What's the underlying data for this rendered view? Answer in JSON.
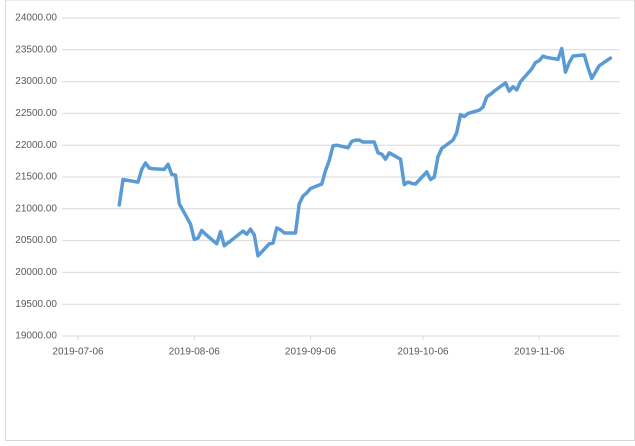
{
  "chart_data": {
    "type": "line",
    "x": [
      "2019-07-17",
      "2019-07-18",
      "2019-07-22",
      "2019-07-23",
      "2019-07-24",
      "2019-07-25",
      "2019-07-26",
      "2019-07-29",
      "2019-07-30",
      "2019-07-31",
      "2019-08-01",
      "2019-08-02",
      "2019-08-05",
      "2019-08-06",
      "2019-08-07",
      "2019-08-08",
      "2019-08-09",
      "2019-08-12",
      "2019-08-13",
      "2019-08-14",
      "2019-08-16",
      "2019-08-19",
      "2019-08-20",
      "2019-08-21",
      "2019-08-22",
      "2019-08-23",
      "2019-08-26",
      "2019-08-27",
      "2019-08-28",
      "2019-08-29",
      "2019-08-30",
      "2019-09-02",
      "2019-09-03",
      "2019-09-04",
      "2019-09-05",
      "2019-09-06",
      "2019-09-09",
      "2019-09-10",
      "2019-09-11",
      "2019-09-12",
      "2019-09-13",
      "2019-09-16",
      "2019-09-17",
      "2019-09-18",
      "2019-09-19",
      "2019-09-20",
      "2019-09-23",
      "2019-09-24",
      "2019-09-25",
      "2019-09-26",
      "2019-09-27",
      "2019-09-30",
      "2019-10-01",
      "2019-10-02",
      "2019-10-03",
      "2019-10-04",
      "2019-10-07",
      "2019-10-08",
      "2019-10-09",
      "2019-10-10",
      "2019-10-11",
      "2019-10-14",
      "2019-10-15",
      "2019-10-16",
      "2019-10-17",
      "2019-10-18",
      "2019-10-21",
      "2019-10-22",
      "2019-10-23",
      "2019-10-24",
      "2019-10-25",
      "2019-10-28",
      "2019-10-29",
      "2019-10-30",
      "2019-10-31",
      "2019-11-01",
      "2019-11-04",
      "2019-11-05",
      "2019-11-06",
      "2019-11-07",
      "2019-11-08",
      "2019-11-11",
      "2019-11-12",
      "2019-11-13",
      "2019-11-14",
      "2019-11-15",
      "2019-11-18",
      "2019-11-19",
      "2019-11-20",
      "2019-11-21",
      "2019-11-22",
      "2019-11-25"
    ],
    "values": [
      21060,
      21460,
      21420,
      21620,
      21720,
      21640,
      21630,
      21620,
      21700,
      21540,
      21530,
      21080,
      20760,
      20520,
      20540,
      20660,
      20600,
      20450,
      20640,
      20420,
      20510,
      20650,
      20600,
      20680,
      20590,
      20260,
      20450,
      20460,
      20700,
      20670,
      20620,
      20620,
      21080,
      21200,
      21250,
      21320,
      21390,
      21600,
      21760,
      21990,
      22000,
      21960,
      22060,
      22080,
      22080,
      22050,
      22050,
      21880,
      21860,
      21780,
      21880,
      21780,
      21380,
      21420,
      21400,
      21390,
      21580,
      21460,
      21500,
      21820,
      21950,
      22080,
      22200,
      22480,
      22450,
      22500,
      22550,
      22600,
      22760,
      22800,
      22850,
      22980,
      22850,
      22920,
      22870,
      23000,
      23200,
      23300,
      23330,
      23400,
      23380,
      23350,
      23520,
      23150,
      23300,
      23400,
      23420,
      23220,
      23050,
      23150,
      23250,
      23370
    ],
    "color": "#5b9bd5",
    "xlim": [
      "2019-07-06",
      "2019-11-27"
    ],
    "xticks": [
      "2019-07-06",
      "2019-08-06",
      "2019-09-06",
      "2019-10-06",
      "2019-11-06"
    ],
    "ylim": [
      19000,
      24000
    ],
    "yticks": [
      {
        "value": 19000,
        "label": "19000.00"
      },
      {
        "value": 19500,
        "label": "19500.00"
      },
      {
        "value": 20000,
        "label": "20000.00"
      },
      {
        "value": 20500,
        "label": "20500.00"
      },
      {
        "value": 21000,
        "label": "21000.00"
      },
      {
        "value": 21500,
        "label": "21500.00"
      },
      {
        "value": 22000,
        "label": "22000.00"
      },
      {
        "value": 22500,
        "label": "22500.00"
      },
      {
        "value": 23000,
        "label": "23000.00"
      },
      {
        "value": 23500,
        "label": "23500.00"
      },
      {
        "value": 24000,
        "label": "24000.00"
      }
    ],
    "grid": true
  }
}
